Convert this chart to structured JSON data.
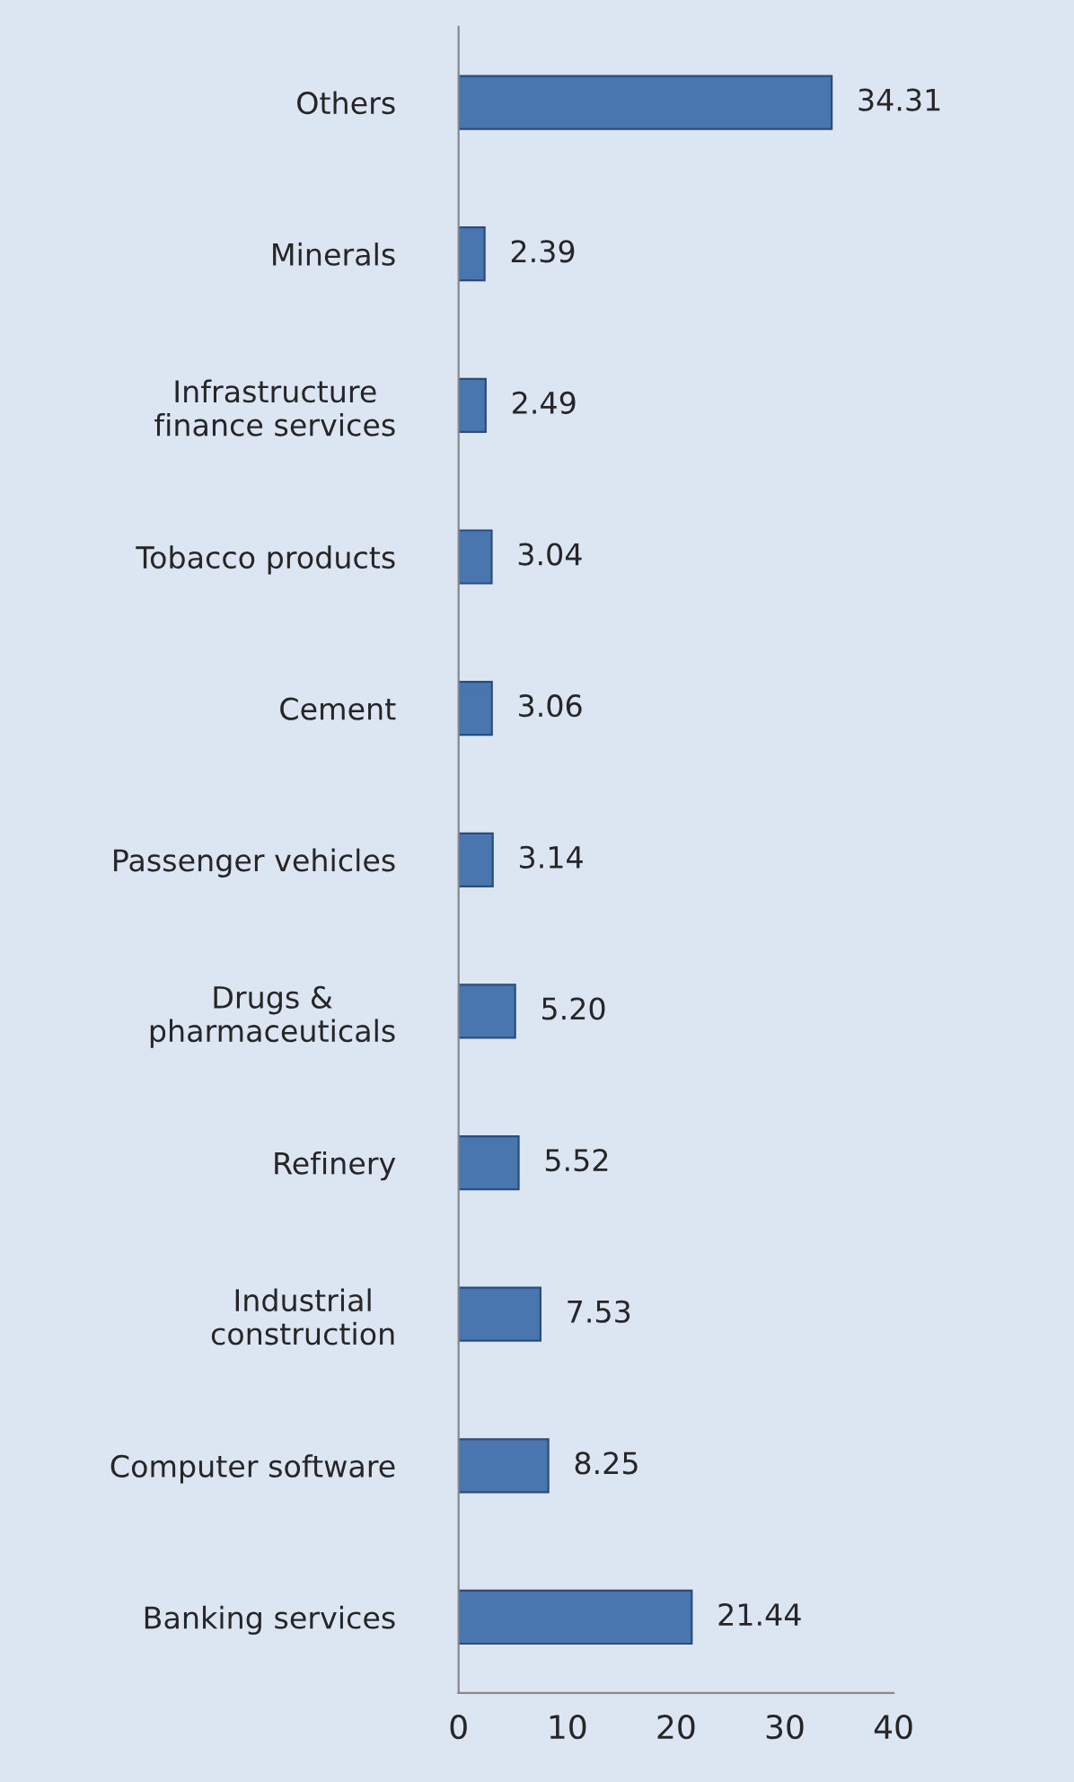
{
  "chart_data": {
    "type": "bar",
    "orientation": "horizontal",
    "categories": [
      "Others",
      "Minerals",
      "Infrastructure\nfinance services",
      "Tobacco products",
      "Cement",
      "Passenger vehicles",
      "Drugs &\npharmaceuticals",
      "Refinery",
      "Industrial\nconstruction",
      "Computer software",
      "Banking services"
    ],
    "values": [
      34.31,
      2.39,
      2.49,
      3.04,
      3.06,
      3.14,
      5.2,
      5.52,
      7.53,
      8.25,
      21.44
    ],
    "value_labels": [
      "34.31",
      "2.39",
      "2.49",
      "3.04",
      "3.06",
      "3.14",
      "5.20",
      "5.52",
      "7.53",
      "8.25",
      "21.44"
    ],
    "color": "#4a76b0",
    "xlim": [
      0,
      40
    ],
    "xticks": [
      0,
      10,
      20,
      30,
      40
    ],
    "grid": false
  }
}
